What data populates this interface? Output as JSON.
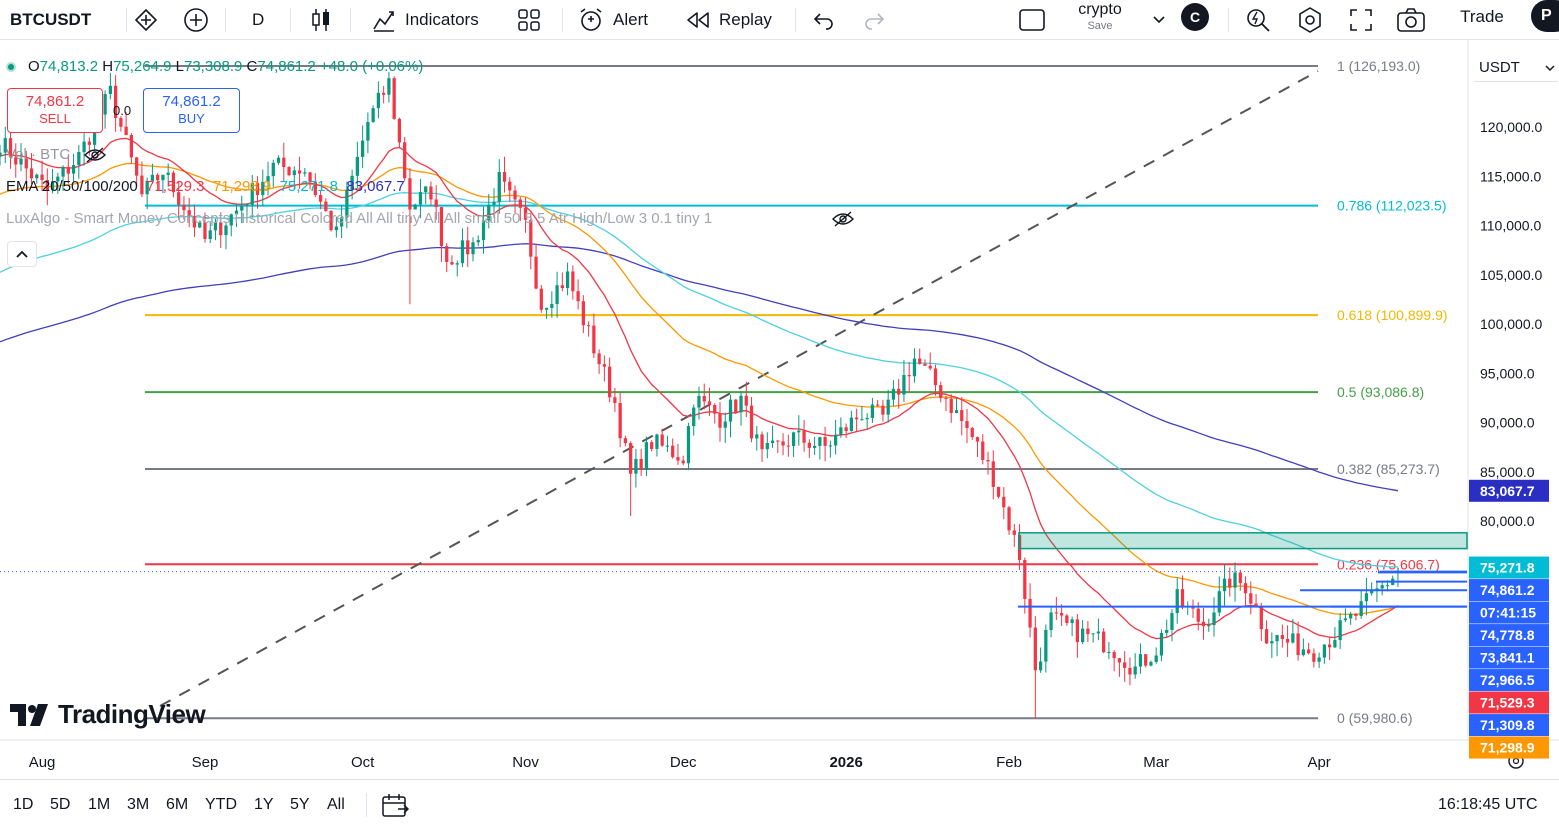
{
  "toolbar": {
    "symbol": "BTCUSDT",
    "interval": "D",
    "indicators_label": "Indicators",
    "alert_label": "Alert",
    "replay_label": "Replay",
    "layout_name": "crypto",
    "save_label": "Save",
    "user_initial": "C",
    "trade_label": "Trade",
    "profile_initial": "P"
  },
  "legend": {
    "ohlc": {
      "o_label": "O",
      "o": "74,813.2",
      "h_label": "H",
      "h": "75,264.9",
      "l_label": "L",
      "l": "73,308.9",
      "c_label": "C",
      "c": "74,861.2",
      "change": "+48.0 (+0.06%)"
    },
    "sell_price": "74,861.2",
    "sell_label": "SELL",
    "buy_price": "74,861.2",
    "buy_label": "BUY",
    "spread": "0.0",
    "volume_label": "Vol · BTC",
    "ema_label": "EMA 20/50/100/200",
    "ema_values": [
      "71,529.3",
      "71,298.9",
      "75,271.8",
      "83,067.7"
    ],
    "luxalgo_label": "LuxAlgo - Smart Money Concepts Historical Colored All All tiny All All small 50 5 5 Atr High/Low 3 0.1 tiny 1"
  },
  "currency": "USDT",
  "colors": {
    "up": "#089981",
    "down": "#f23645",
    "ema20": "#f23645",
    "ema50": "#ff9800",
    "ema100": "#4dd0e1",
    "ema200": "#3f3fbf",
    "fib_1": "#787b86",
    "fib_0786": "#00bcd4",
    "fib_0618": "#f5b700",
    "fib_05": "#43a047",
    "fib_0382": "#787b86",
    "fib_0236": "#f23645",
    "fib_0": "#787b86",
    "ob_blue": "#2962ff",
    "ob_green": "#089981"
  },
  "chart_data": {
    "type": "candlestick",
    "title": "BTCUSDT",
    "interval": "1D",
    "y_axis": {
      "ticks": [
        "80,000.0",
        "85,000.0",
        "90,000.0",
        "95,000.0",
        "100,000.0",
        "105,000.0",
        "110,000.0",
        "115,000.0",
        "120,000.0"
      ],
      "tick_values": [
        80000,
        85000,
        90000,
        95000,
        100000,
        105000,
        110000,
        115000,
        120000
      ],
      "range": [
        57000,
        127500
      ],
      "position": "right"
    },
    "x_axis": {
      "labels": [
        "Aug",
        "Sep",
        "Oct",
        "Nov",
        "Dec",
        "2026",
        "Feb",
        "Mar",
        "Apr"
      ],
      "range": [
        "2025-07-24",
        "2026-04-24"
      ]
    },
    "price_labels": [
      {
        "text": "83,067.7",
        "value": 83067.7,
        "bg": "#2a2ec3"
      },
      {
        "text": "75,271.8",
        "value": 75271.8,
        "bg": "#00bcd4"
      },
      {
        "text": "74,861.2",
        "value": 74861.2,
        "bg": "#2962ff"
      },
      {
        "text": "07:41:15",
        "value": 72900,
        "bg": "#2962ff"
      },
      {
        "text": "74,778.8",
        "value": 74778.8,
        "bg": "#2962ff"
      },
      {
        "text": "73,841.1",
        "value": 73841.1,
        "bg": "#2962ff"
      },
      {
        "text": "72,966.5",
        "value": 72966.5,
        "bg": "#2962ff"
      },
      {
        "text": "71,529.3",
        "value": 71529.3,
        "bg": "#f23645"
      },
      {
        "text": "71,309.8",
        "value": 71309.8,
        "bg": "#2962ff"
      },
      {
        "text": "71,298.9",
        "value": 71298.9,
        "bg": "#ff9800"
      }
    ],
    "fibonacci": [
      {
        "label": "1 (126,193.0)",
        "value": 126193.0,
        "color": "#787b86"
      },
      {
        "label": "0.786 (112,023.5)",
        "value": 112023.5,
        "color": "#00bcd4"
      },
      {
        "label": "0.618 (100,899.9)",
        "value": 100899.9,
        "color": "#f5b700"
      },
      {
        "label": "0.5 (93,086.8)",
        "value": 93086.8,
        "color": "#43a047"
      },
      {
        "label": "0.382 (85,273.7)",
        "value": 85273.7,
        "color": "#787b86"
      },
      {
        "label": "0.236 (75,606.7)",
        "value": 75606.7,
        "color": "#f23645"
      },
      {
        "label": "0 (59,980.6)",
        "value": 59980.6,
        "color": "#787b86"
      }
    ],
    "ohlc_last": {
      "open": 74813.2,
      "high": 75264.9,
      "low": 73308.9,
      "close": 74861.2
    },
    "ema_last": {
      "ema20": 71529.3,
      "ema50": 71298.9,
      "ema100": 75271.8,
      "ema200": 83067.7
    },
    "series": [
      {
        "name": "BTCUSDT",
        "kind": "candles"
      },
      {
        "name": "EMA 20",
        "kind": "line"
      },
      {
        "name": "EMA 50",
        "kind": "line"
      },
      {
        "name": "EMA 100",
        "kind": "line"
      },
      {
        "name": "EMA 200",
        "kind": "line"
      }
    ],
    "grid": false
  },
  "bottombar": {
    "ranges": [
      "1D",
      "5D",
      "1M",
      "3M",
      "6M",
      "YTD",
      "1Y",
      "5Y",
      "All"
    ],
    "time": "16:18:45 UTC"
  },
  "branding": "TradingView"
}
